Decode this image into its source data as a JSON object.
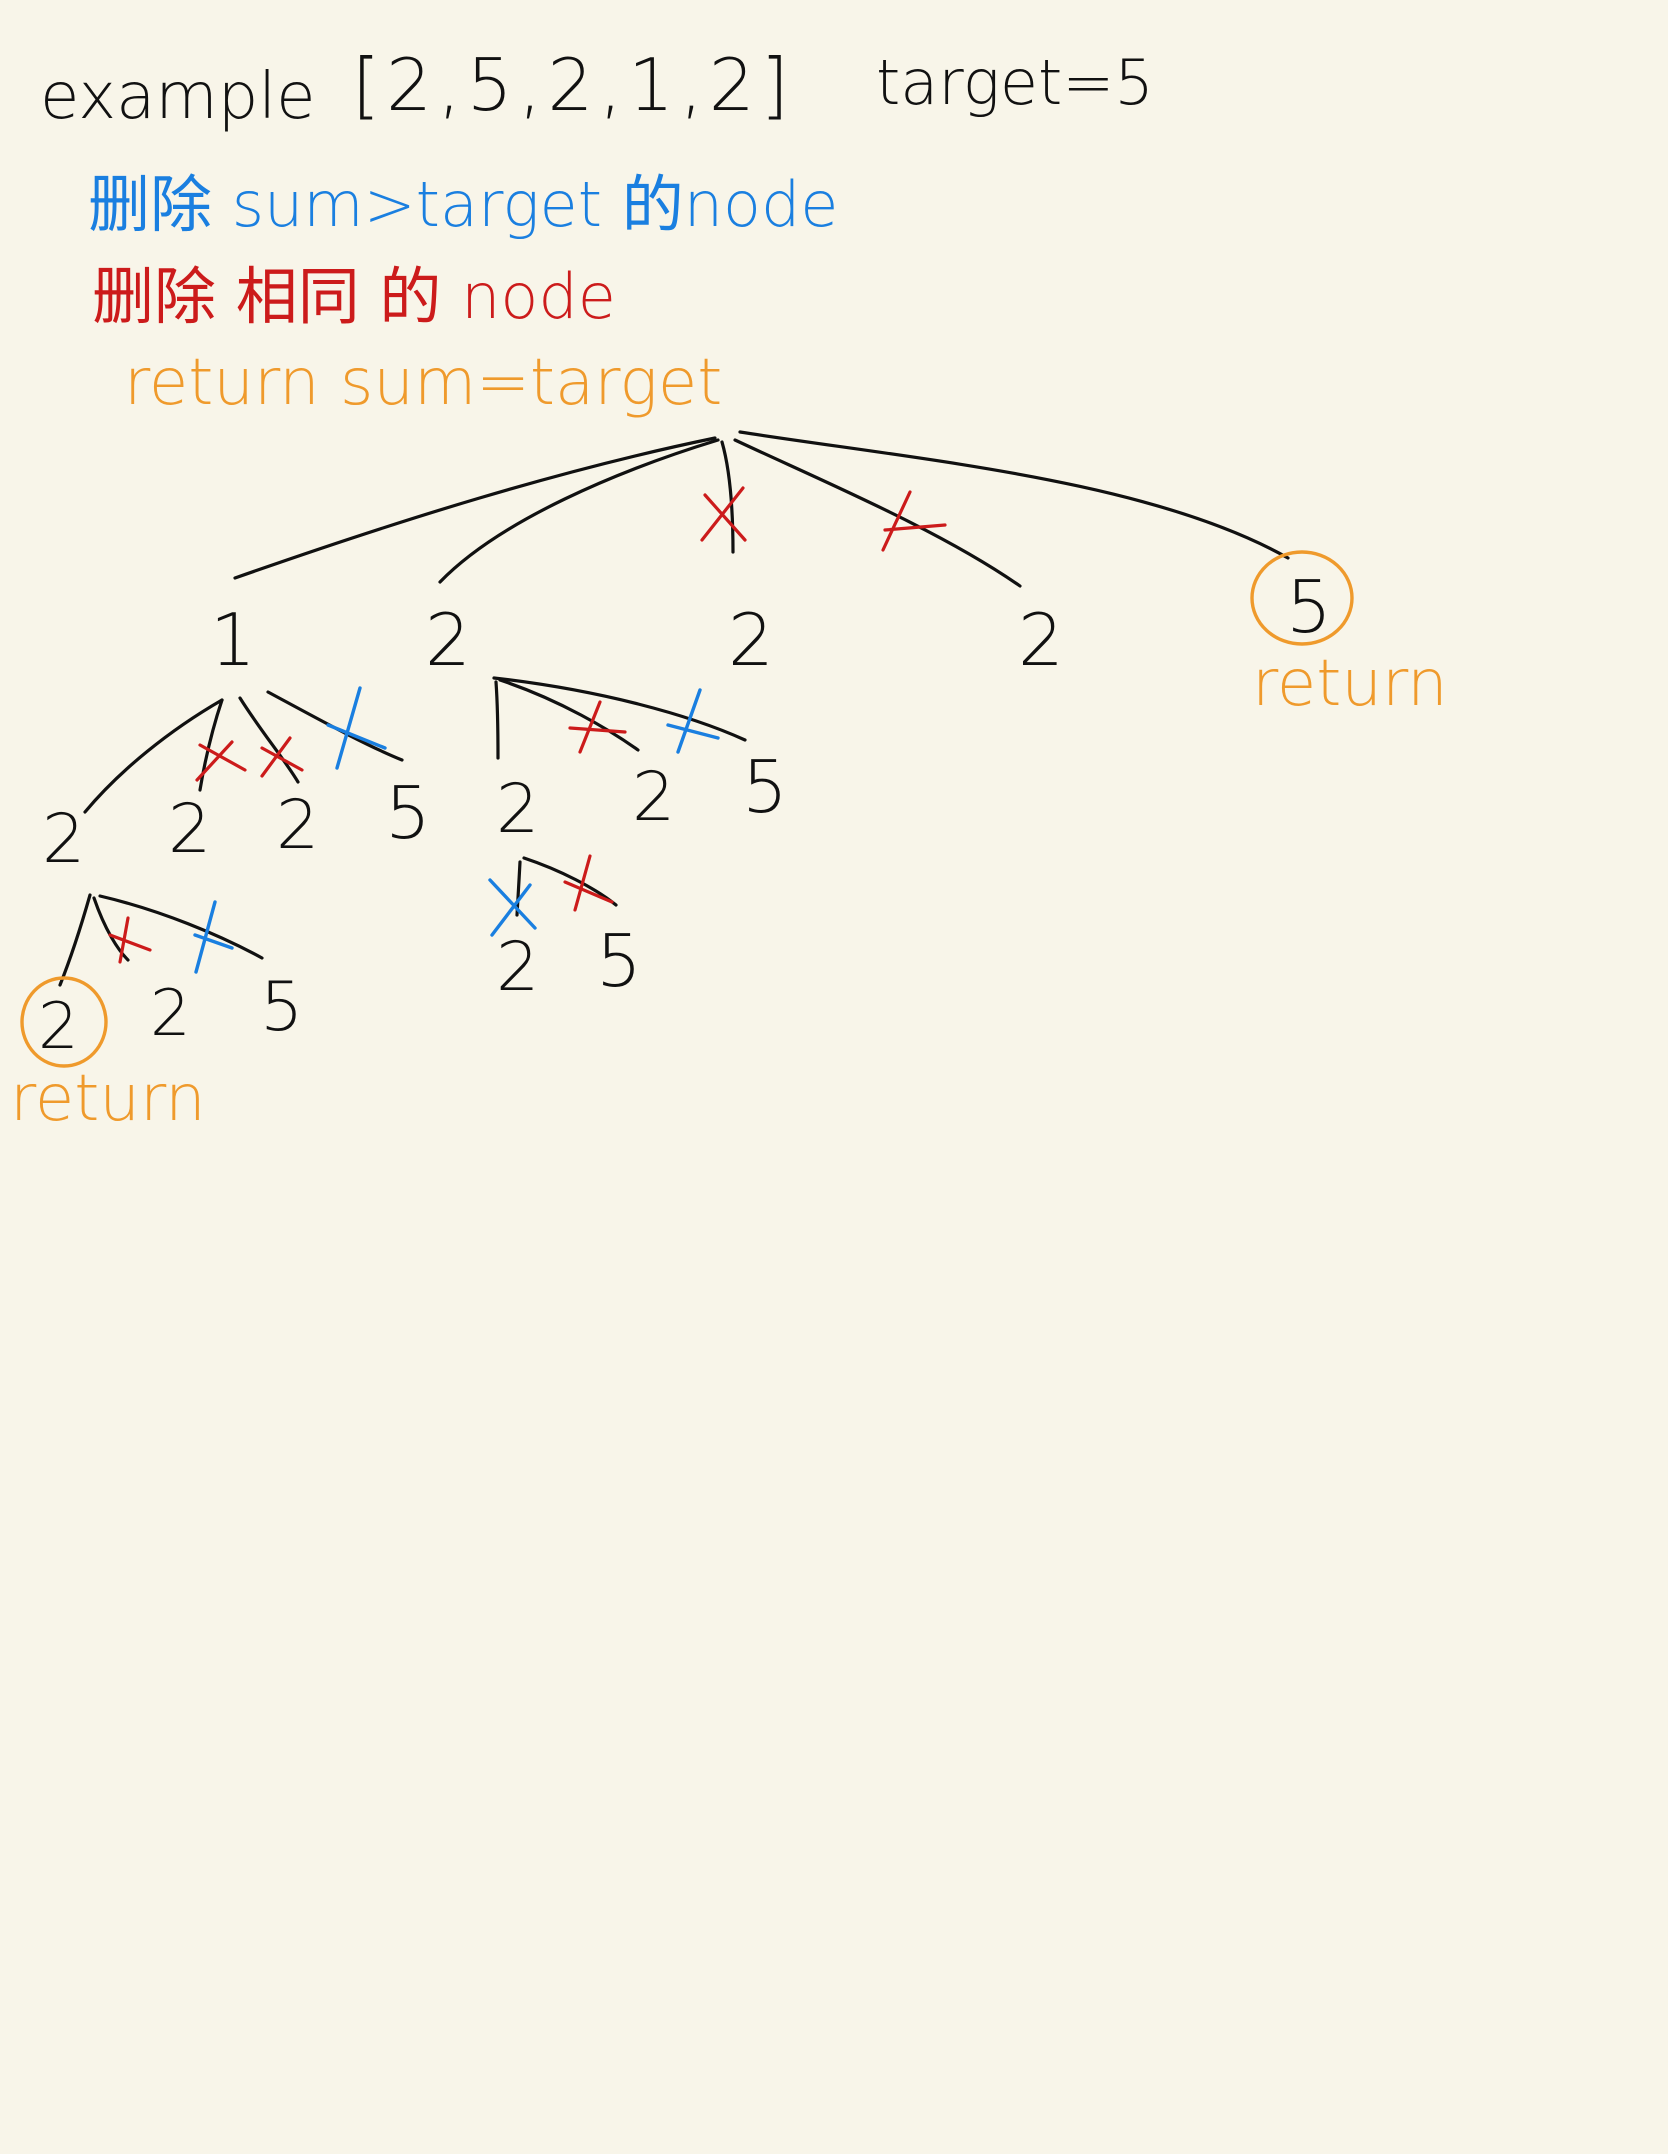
{
  "header": {
    "example_label": "example",
    "array": "[2,5,2,1,2]",
    "target": "target=5"
  },
  "legend": {
    "blue_rule": "删除 sum>target 的node",
    "red_rule": "删除 相同 的 node",
    "orange_rule": "return sum=target"
  },
  "tree": {
    "level1": [
      "1",
      "2",
      "2",
      "2",
      "5"
    ],
    "level2_a": [
      "2",
      "2",
      "2",
      "5"
    ],
    "level2_b": [
      "2",
      "2",
      "5"
    ],
    "level3_a": [
      "2",
      "2",
      "5"
    ],
    "level3_b": [
      "2",
      "5"
    ]
  },
  "return_labels": [
    "return",
    "return"
  ],
  "colors": {
    "background": "#f8f5e9",
    "ink": "#111111",
    "blue": "#1a7fe0",
    "red": "#cc1b1b",
    "orange": "#ef9a2c"
  }
}
